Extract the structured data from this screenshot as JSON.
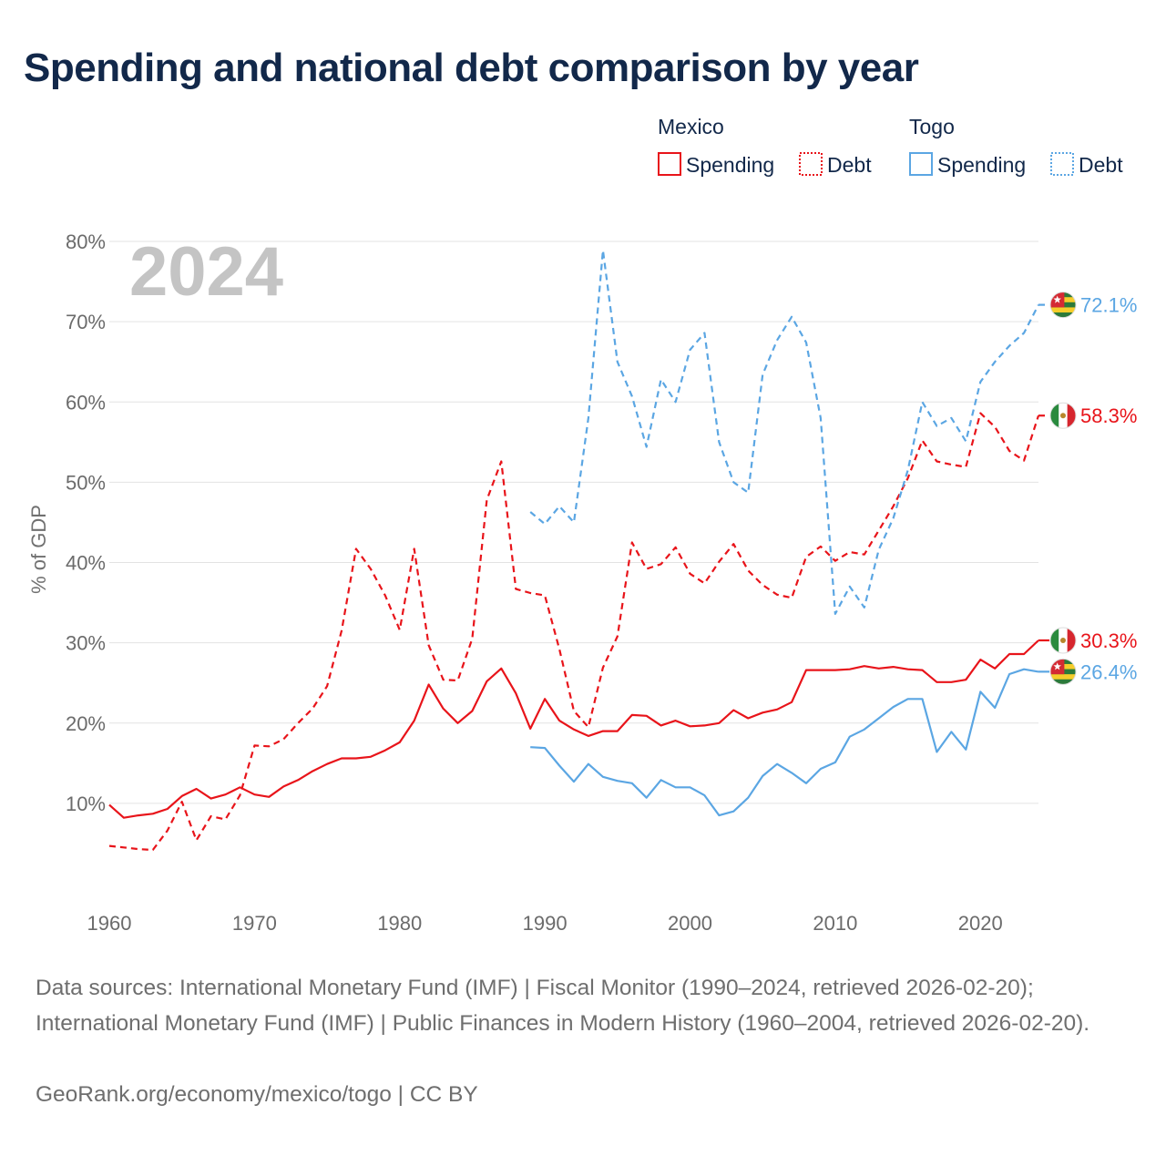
{
  "title": "Spending and national debt comparison by year",
  "year_label": "2024",
  "legend": {
    "groups": [
      {
        "country": "Mexico",
        "spending_label": "Spending",
        "debt_label": "Debt",
        "color": "#e8141a"
      },
      {
        "country": "Togo",
        "spending_label": "Spending",
        "debt_label": "Debt",
        "color": "#5ba6e3"
      }
    ]
  },
  "footer": {
    "sources": "Data sources: International Monetary Fund (IMF) | Fiscal Monitor (1990–2024, retrieved 2026-02-20); International Monetary Fund (IMF) | Public Finances in Modern History (1960–2004, retrieved 2026-02-20).",
    "credit": "GeoRank.org/economy/mexico/togo | CC BY"
  },
  "chart_data": {
    "type": "line",
    "title": "Spending and national debt comparison by year",
    "ylabel": "% of GDP",
    "xlabel": "",
    "xlim": [
      1960,
      2024
    ],
    "ylim": [
      0,
      80
    ],
    "x_ticks": [
      1960,
      1970,
      1980,
      1990,
      2000,
      2010,
      2020
    ],
    "y_ticks": [
      {
        "value": 10,
        "label": "10%"
      },
      {
        "value": 20,
        "label": "20%"
      },
      {
        "value": 30,
        "label": "30%"
      },
      {
        "value": 40,
        "label": "40%"
      },
      {
        "value": 50,
        "label": "50%"
      },
      {
        "value": 60,
        "label": "60%"
      },
      {
        "value": 70,
        "label": "70%"
      },
      {
        "value": 80,
        "label": "80%"
      }
    ],
    "grid": true,
    "series": [
      {
        "name": "Mexico Spending",
        "country": "Mexico",
        "metric": "Spending",
        "color": "#e8141a",
        "dash": false,
        "end_label": "30.3%",
        "x": [
          1960,
          1961,
          1962,
          1963,
          1964,
          1965,
          1966,
          1967,
          1968,
          1969,
          1970,
          1971,
          1972,
          1973,
          1974,
          1975,
          1976,
          1977,
          1978,
          1979,
          1980,
          1981,
          1982,
          1983,
          1984,
          1985,
          1986,
          1987,
          1988,
          1989,
          1990,
          1991,
          1992,
          1993,
          1994,
          1995,
          1996,
          1997,
          1998,
          1999,
          2000,
          2001,
          2002,
          2003,
          2004,
          2005,
          2006,
          2007,
          2008,
          2009,
          2010,
          2011,
          2012,
          2013,
          2014,
          2015,
          2016,
          2017,
          2018,
          2019,
          2020,
          2021,
          2022,
          2023,
          2024
        ],
        "values": [
          9.8,
          8.2,
          8.5,
          8.7,
          9.3,
          10.9,
          11.8,
          10.6,
          11.1,
          12.0,
          11.1,
          10.8,
          12.1,
          12.9,
          14.0,
          14.9,
          15.6,
          15.6,
          15.8,
          16.6,
          17.6,
          20.3,
          24.8,
          21.8,
          20.0,
          21.5,
          25.2,
          26.8,
          23.7,
          19.3,
          23.0,
          20.3,
          19.2,
          18.4,
          19.0,
          19.0,
          21.0,
          20.9,
          19.7,
          20.3,
          19.6,
          19.7,
          20.0,
          21.6,
          20.6,
          21.3,
          21.7,
          22.6,
          26.6,
          26.6,
          26.6,
          26.7,
          27.1,
          26.8,
          27.0,
          26.7,
          26.6,
          25.1,
          25.1,
          25.4,
          27.9,
          26.8,
          28.6,
          28.6,
          30.3
        ]
      },
      {
        "name": "Mexico Debt",
        "country": "Mexico",
        "metric": "Debt",
        "color": "#e8141a",
        "dash": true,
        "end_label": "58.3%",
        "x": [
          1960,
          1961,
          1962,
          1963,
          1964,
          1965,
          1966,
          1967,
          1968,
          1969,
          1970,
          1971,
          1972,
          1973,
          1974,
          1975,
          1976,
          1977,
          1978,
          1979,
          1980,
          1981,
          1982,
          1983,
          1984,
          1985,
          1986,
          1987,
          1988,
          1989,
          1990,
          1991,
          1992,
          1993,
          1994,
          1995,
          1996,
          1997,
          1998,
          1999,
          2000,
          2001,
          2002,
          2003,
          2004,
          2005,
          2006,
          2007,
          2008,
          2009,
          2010,
          2011,
          2012,
          2013,
          2014,
          2015,
          2016,
          2017,
          2018,
          2019,
          2020,
          2021,
          2022,
          2023,
          2024
        ],
        "values": [
          4.7,
          4.5,
          4.3,
          4.2,
          6.6,
          10.2,
          5.4,
          8.4,
          8.0,
          11.0,
          17.2,
          17.1,
          18.0,
          20.0,
          21.8,
          24.6,
          31.5,
          41.7,
          39.2,
          35.9,
          31.6,
          41.7,
          29.7,
          25.4,
          25.3,
          30.5,
          47.8,
          52.6,
          36.7,
          36.2,
          35.9,
          29.2,
          21.5,
          19.5,
          26.9,
          30.8,
          42.5,
          39.2,
          39.8,
          41.9,
          38.6,
          37.4,
          40.1,
          42.3,
          39.0,
          37.2,
          36.0,
          35.6,
          40.7,
          42.0,
          40.2,
          41.3,
          41.0,
          44.0,
          47.0,
          50.5,
          55.2,
          52.6,
          52.2,
          51.9,
          58.6,
          56.9,
          53.9,
          52.7,
          58.3
        ]
      },
      {
        "name": "Togo Spending",
        "country": "Togo",
        "metric": "Spending",
        "color": "#5ba6e3",
        "dash": false,
        "end_label": "26.4%",
        "x": [
          1989,
          1990,
          1991,
          1992,
          1993,
          1994,
          1995,
          1996,
          1997,
          1998,
          1999,
          2000,
          2001,
          2002,
          2003,
          2004,
          2005,
          2006,
          2007,
          2008,
          2009,
          2010,
          2011,
          2012,
          2013,
          2014,
          2015,
          2016,
          2017,
          2018,
          2019,
          2020,
          2021,
          2022,
          2023,
          2024
        ],
        "values": [
          17.0,
          16.9,
          14.7,
          12.7,
          14.9,
          13.3,
          12.8,
          12.5,
          10.7,
          12.9,
          12.0,
          12.0,
          11.0,
          8.5,
          9.0,
          10.7,
          13.4,
          14.9,
          13.8,
          12.5,
          14.3,
          15.1,
          18.3,
          19.2,
          20.6,
          22.0,
          23.0,
          23.0,
          16.4,
          18.9,
          16.7,
          23.9,
          21.9,
          26.1,
          26.7,
          26.4
        ]
      },
      {
        "name": "Togo Debt",
        "country": "Togo",
        "metric": "Debt",
        "color": "#5ba6e3",
        "dash": true,
        "end_label": "72.1%",
        "x": [
          1989,
          1990,
          1991,
          1992,
          1993,
          1994,
          1995,
          1996,
          1997,
          1998,
          1999,
          2000,
          2001,
          2002,
          2003,
          2004,
          2005,
          2006,
          2007,
          2008,
          2009,
          2010,
          2011,
          2012,
          2013,
          2014,
          2015,
          2016,
          2017,
          2018,
          2019,
          2020,
          2021,
          2022,
          2023,
          2024
        ],
        "values": [
          46.3,
          44.8,
          47.0,
          45.0,
          58.0,
          78.9,
          65.0,
          60.7,
          54.4,
          62.8,
          60.0,
          66.5,
          68.6,
          55.0,
          50.0,
          48.7,
          63.4,
          67.7,
          70.6,
          67.4,
          58.0,
          33.6,
          37.0,
          34.4,
          41.6,
          45.5,
          51.5,
          60.0,
          57.0,
          58.0,
          55.1,
          62.5,
          65.0,
          67.0,
          68.6,
          72.1
        ]
      }
    ]
  }
}
